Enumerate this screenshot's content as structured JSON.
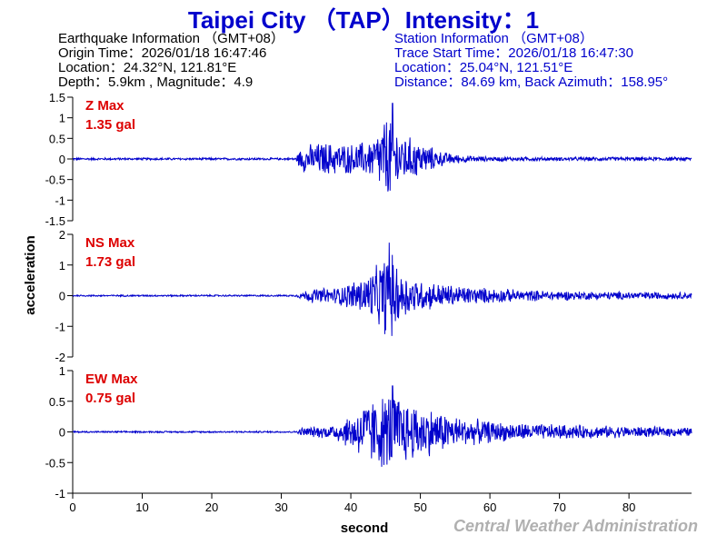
{
  "title": "Taipei City （TAP）Intensity：1",
  "earthquake": {
    "heading": "Earthquake Information （GMT+08）",
    "origin_time": "Origin Time：2026/01/18 16:47:46",
    "location": "Location：24.32°N, 121.81°E",
    "depth_mag": "Depth：5.9km , Magnitude：4.9"
  },
  "station": {
    "heading": "Station Information （GMT+08）",
    "trace_start": "Trace Start Time：2026/01/18 16:47:30",
    "location": "Location：25.04°N, 121.51°E",
    "distance": "Distance：84.69 km, Back Azimuth：158.95°"
  },
  "footer": "Central Weather Administration",
  "colors": {
    "title": "#0000cc",
    "trace": "#0000cc",
    "max_label": "#dd0000",
    "footer": "#b0b0b0"
  },
  "chart_data": {
    "type": "line",
    "xlabel": "second",
    "ylabel": "acceleration",
    "xlim": [
      0,
      89
    ],
    "x_ticks": [
      0,
      10,
      20,
      30,
      40,
      50,
      60,
      70,
      80
    ],
    "series": [
      {
        "name": "Z",
        "max_label": "Z Max",
        "max_value": "1.35 gal",
        "peak": 1.35,
        "ylim": [
          -1.5,
          1.5
        ],
        "y_ticks": [
          -1.5,
          -1,
          -0.5,
          0,
          0.5,
          1,
          1.5
        ],
        "y_tick_labels": [
          "-1.5",
          "-1",
          "-0.5",
          "0",
          "0.5",
          "1",
          "1.5"
        ],
        "envelope": [
          [
            0,
            0.03
          ],
          [
            32,
            0.03
          ],
          [
            33,
            0.35
          ],
          [
            36,
            0.45
          ],
          [
            40,
            0.4
          ],
          [
            43,
            0.5
          ],
          [
            45,
            1.1
          ],
          [
            46,
            1.35
          ],
          [
            47,
            0.7
          ],
          [
            50,
            0.45
          ],
          [
            53,
            0.2
          ],
          [
            56,
            0.1
          ],
          [
            60,
            0.06
          ],
          [
            70,
            0.05
          ],
          [
            89,
            0.05
          ]
        ]
      },
      {
        "name": "NS",
        "max_label": "NS Max",
        "max_value": "1.73 gal",
        "peak": 1.73,
        "ylim": [
          -2,
          2
        ],
        "y_ticks": [
          -2,
          -1,
          0,
          1,
          2
        ],
        "y_tick_labels": [
          "-2",
          "-1",
          "0",
          "1",
          "2"
        ],
        "envelope": [
          [
            0,
            0.03
          ],
          [
            32,
            0.03
          ],
          [
            34,
            0.25
          ],
          [
            38,
            0.3
          ],
          [
            42,
            0.7
          ],
          [
            44,
            1.1
          ],
          [
            45.5,
            1.73
          ],
          [
            47,
            0.9
          ],
          [
            50,
            0.55
          ],
          [
            54,
            0.4
          ],
          [
            58,
            0.3
          ],
          [
            65,
            0.2
          ],
          [
            75,
            0.15
          ],
          [
            89,
            0.12
          ]
        ]
      },
      {
        "name": "EW",
        "max_label": "EW Max",
        "max_value": "0.75 gal",
        "peak": 0.75,
        "ylim": [
          -1,
          1
        ],
        "y_ticks": [
          -1,
          -0.5,
          0,
          0.5,
          1
        ],
        "y_tick_labels": [
          "-1",
          "-0.5",
          "0",
          "0.5",
          "1"
        ],
        "envelope": [
          [
            0,
            0.015
          ],
          [
            32,
            0.015
          ],
          [
            33,
            0.08
          ],
          [
            37,
            0.12
          ],
          [
            40,
            0.3
          ],
          [
            42,
            0.55
          ],
          [
            44,
            0.62
          ],
          [
            46,
            0.75
          ],
          [
            48,
            0.55
          ],
          [
            52,
            0.4
          ],
          [
            56,
            0.25
          ],
          [
            62,
            0.17
          ],
          [
            70,
            0.13
          ],
          [
            80,
            0.1
          ],
          [
            89,
            0.08
          ]
        ]
      }
    ]
  }
}
